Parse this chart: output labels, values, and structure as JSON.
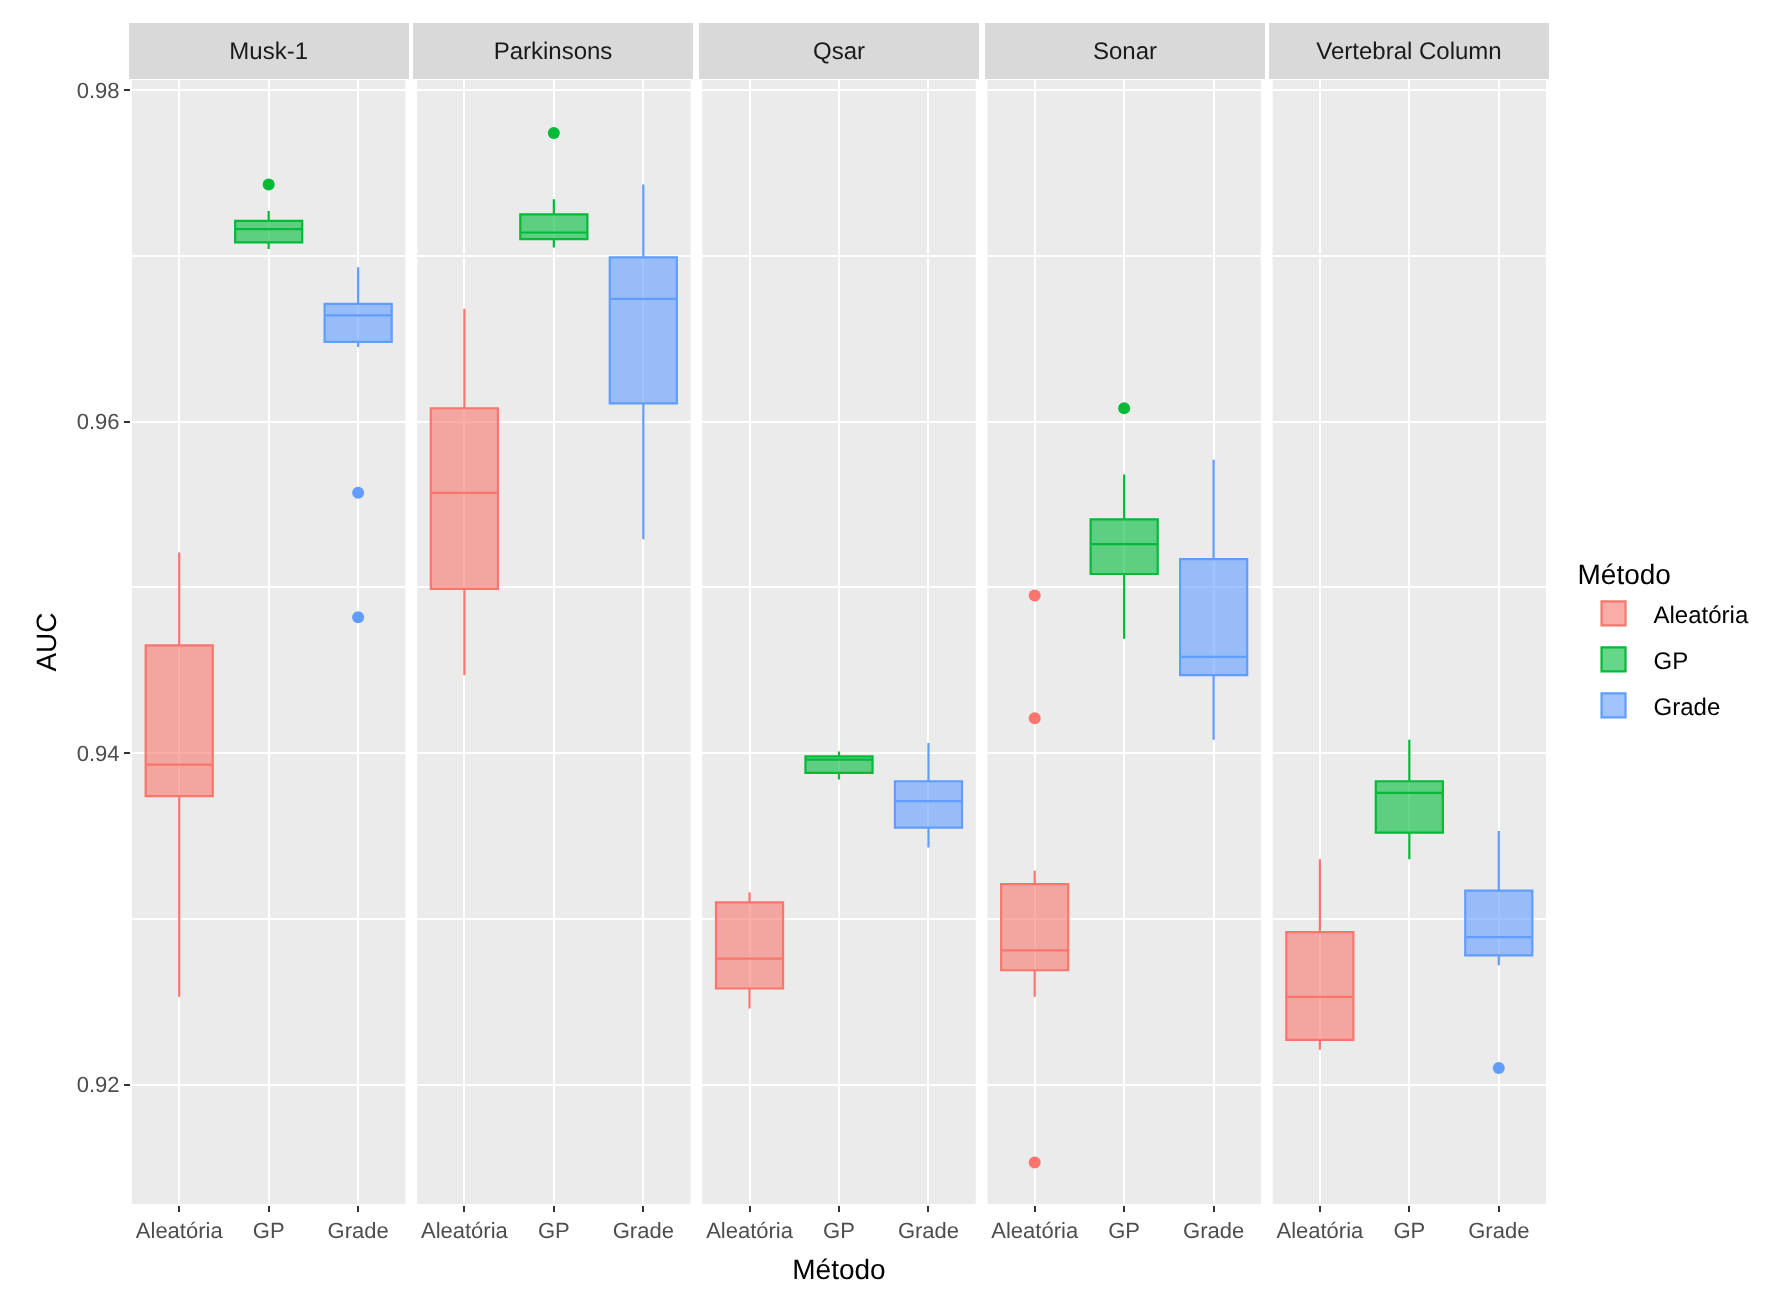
{
  "chart_data": [
    {
      "type": "box",
      "title": "Musk-1",
      "ylabel": "AUC",
      "categories": [
        "Aleatória",
        "GP",
        "Grade"
      ],
      "series": [
        {
          "color": "#f8766d",
          "boxes": [
            {
              "low": 0.9253,
              "q1": 0.9374,
              "median": 0.9393,
              "q3": 0.9465,
              "high": 0.9521
            },
            null,
            null
          ]
        },
        {
          "color": "#00ba38",
          "boxes": [
            null,
            {
              "low": 0.9704,
              "q1": 0.9708,
              "median": 0.9716,
              "q3": 0.9721,
              "high": 0.9727,
              "outliers": [
                0.9743
              ]
            },
            null
          ]
        },
        {
          "color": "#619cff",
          "boxes": [
            null,
            null,
            {
              "low": 0.9645,
              "q1": 0.9648,
              "median": 0.9664,
              "q3": 0.9671,
              "high": 0.9693,
              "outliers": [
                0.9557,
                0.9482
              ]
            }
          ]
        }
      ],
      "ylim": [
        0.9128,
        0.9806
      ],
      "yticks": [
        0.92,
        {
          "value": 0.93,
          "label": null
        },
        0.94,
        {
          "value": 0.95,
          "label": null
        },
        0.96,
        {
          "value": 0.97,
          "label": null
        },
        0.98
      ],
      "grid": true
    },
    {
      "type": "box",
      "title": "Parkinsons",
      "categories": [
        "Aleatória",
        "GP",
        "Grade"
      ],
      "series": [
        {
          "color": "#f8766d",
          "boxes": [
            {
              "low": 0.9447,
              "q1": 0.9499,
              "median": 0.9557,
              "q3": 0.9608,
              "high": 0.9668
            },
            null,
            null
          ]
        },
        {
          "color": "#00ba38",
          "boxes": [
            null,
            {
              "low": 0.9705,
              "q1": 0.971,
              "median": 0.9714,
              "q3": 0.9725,
              "high": 0.9734,
              "outliers": [
                0.9774
              ]
            },
            null
          ]
        },
        {
          "color": "#619cff",
          "boxes": [
            null,
            null,
            {
              "low": 0.9529,
              "q1": 0.9611,
              "median": 0.9674,
              "q3": 0.9699,
              "high": 0.9743
            }
          ]
        }
      ],
      "ylim": [
        0.9128,
        0.9806
      ],
      "yticks": [
        0.92,
        {
          "value": 0.93,
          "label": null
        },
        0.94,
        {
          "value": 0.95,
          "label": null
        },
        0.96,
        {
          "value": 0.97,
          "label": null
        },
        0.98
      ],
      "grid": true,
      "tick_labels": "x"
    },
    {
      "type": "box",
      "title": "Qsar",
      "xlabel": "Método",
      "categories": [
        "Aleatória",
        "GP",
        "Grade"
      ],
      "series": [
        {
          "color": "#f8766d",
          "boxes": [
            {
              "low": 0.9246,
              "q1": 0.9258,
              "median": 0.9276,
              "q3": 0.931,
              "high": 0.9316
            },
            null,
            null
          ]
        },
        {
          "color": "#00ba38",
          "boxes": [
            null,
            {
              "low": 0.9384,
              "q1": 0.9388,
              "median": 0.9396,
              "q3": 0.9398,
              "high": 0.9401
            },
            null
          ]
        },
        {
          "color": "#619cff",
          "boxes": [
            null,
            null,
            {
              "low": 0.9343,
              "q1": 0.9355,
              "median": 0.9371,
              "q3": 0.9383,
              "high": 0.9406
            }
          ]
        }
      ],
      "ylim": [
        0.9128,
        0.9806
      ],
      "yticks": [
        0.92,
        {
          "value": 0.93,
          "label": null
        },
        0.94,
        {
          "value": 0.95,
          "label": null
        },
        0.96,
        {
          "value": 0.97,
          "label": null
        },
        0.98
      ],
      "grid": true,
      "tick_labels": "x"
    },
    {
      "type": "box",
      "title": "Sonar",
      "categories": [
        "Aleatória",
        "GP",
        "Grade"
      ],
      "series": [
        {
          "color": "#f8766d",
          "boxes": [
            {
              "low": 0.9253,
              "q1": 0.9269,
              "median": 0.9281,
              "q3": 0.9321,
              "high": 0.9329,
              "outliers": [
                0.9495,
                0.9421,
                0.9153
              ]
            },
            null,
            null
          ]
        },
        {
          "color": "#00ba38",
          "boxes": [
            null,
            {
              "low": 0.9469,
              "q1": 0.9508,
              "median": 0.9526,
              "q3": 0.9541,
              "high": 0.9568,
              "outliers": [
                0.9608
              ]
            },
            null
          ]
        },
        {
          "color": "#619cff",
          "boxes": [
            null,
            null,
            {
              "low": 0.9408,
              "q1": 0.9447,
              "median": 0.9458,
              "q3": 0.9517,
              "high": 0.9577
            }
          ]
        }
      ],
      "ylim": [
        0.9128,
        0.9806
      ],
      "yticks": [
        0.92,
        {
          "value": 0.93,
          "label": null
        },
        0.94,
        {
          "value": 0.95,
          "label": null
        },
        0.96,
        {
          "value": 0.97,
          "label": null
        },
        0.98
      ],
      "grid": true,
      "tick_labels": "x"
    },
    {
      "type": "box",
      "title": "Vertebral Column",
      "legend": "right",
      "legend_title": "Método",
      "categories": [
        "Aleatória",
        "GP",
        "Grade"
      ],
      "series": [
        {
          "name": "Aleatória",
          "color": "#f8766d",
          "boxes": [
            {
              "low": 0.9221,
              "q1": 0.9227,
              "median": 0.9253,
              "q3": 0.9292,
              "high": 0.9336
            },
            null,
            null
          ]
        },
        {
          "name": "GP",
          "color": "#00ba38",
          "boxes": [
            null,
            {
              "low": 0.9336,
              "q1": 0.9352,
              "median": 0.9376,
              "q3": 0.9383,
              "high": 0.9408
            },
            null
          ]
        },
        {
          "name": "Grade",
          "color": "#619cff",
          "boxes": [
            null,
            null,
            {
              "low": 0.9272,
              "q1": 0.9278,
              "median": 0.9289,
              "q3": 0.9317,
              "high": 0.9353,
              "outliers": [
                0.921
              ]
            }
          ]
        }
      ],
      "ylim": [
        0.9128,
        0.9806
      ],
      "yticks": [
        0.92,
        {
          "value": 0.93,
          "label": null
        },
        0.94,
        {
          "value": 0.95,
          "label": null
        },
        0.96,
        {
          "value": 0.97,
          "label": null
        },
        0.98
      ],
      "grid": true,
      "tick_labels": "x"
    }
  ]
}
